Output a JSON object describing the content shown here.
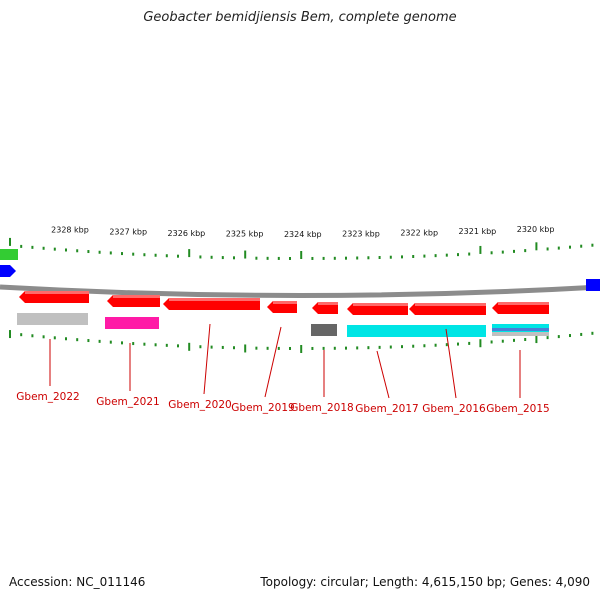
{
  "title": "Geobacter bemidjiensis Bem, complete genome",
  "footer": {
    "accession": "Accession: NC_011146",
    "topology": "Topology: circular; Length: 4,615,150 bp; Genes: 4,090"
  },
  "colors": {
    "backbone": "#8c8c8c",
    "ticks": "#228b22",
    "gene_label": "#cc0000",
    "cds": "#ff0000",
    "feature_gray": "#c0c0c0",
    "feature_magenta": "#ff1aa6",
    "feature_dark": "#666666",
    "feature_cyan": "#00e5e5",
    "feature_blue": "#0000ff",
    "feature_green": "#33cc33"
  },
  "scale_labels": [
    "2328 kbp",
    "2327 kbp",
    "2326 kbp",
    "2325 kbp",
    "2324 kbp",
    "2323 kbp",
    "2322 kbp",
    "2321 kbp",
    "2320 kbp"
  ],
  "genes": [
    {
      "label": "Gbem_2022",
      "strand": "-",
      "secondary": "gray"
    },
    {
      "label": "Gbem_2021",
      "strand": "-",
      "secondary": "magenta"
    },
    {
      "label": "Gbem_2020",
      "strand": "-",
      "secondary": null
    },
    {
      "label": "Gbem_2019",
      "strand": "-",
      "secondary": null
    },
    {
      "label": "Gbem_2018",
      "strand": "-",
      "secondary": "dark"
    },
    {
      "label": "Gbem_2017",
      "strand": "-",
      "secondary": "cyan"
    },
    {
      "label": "Gbem_2016",
      "strand": "-",
      "secondary": "cyan"
    },
    {
      "label": "Gbem_2015",
      "strand": "-",
      "secondary": "cyan-blue"
    }
  ]
}
